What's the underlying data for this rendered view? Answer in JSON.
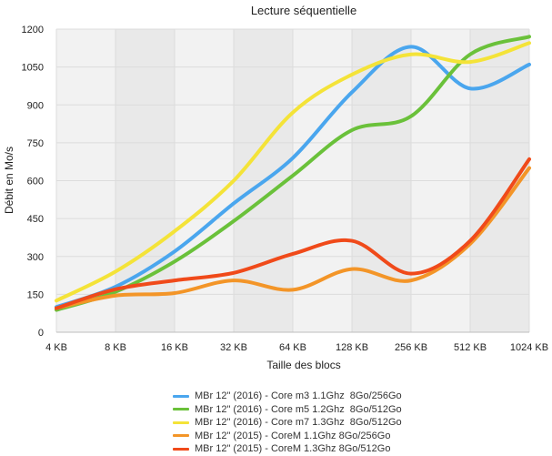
{
  "chart_data": {
    "type": "line",
    "title": "Lecture séquentielle",
    "xlabel": "Taille des blocs",
    "ylabel": "Débit en Mo/s",
    "categories": [
      "4 KB",
      "8 KB",
      "16 KB",
      "32 KB",
      "64 KB",
      "128 KB",
      "256 KB",
      "512 KB",
      "1024 KB"
    ],
    "ylim": [
      0,
      1200
    ],
    "yticks": [
      "0",
      "150",
      "300",
      "450",
      "600",
      "750",
      "900",
      "1050",
      "1200"
    ],
    "grid": true,
    "legend_position": "bottom",
    "series": [
      {
        "name": "MBr 12\" (2016) - Core m3 1.1Ghz  8Go/256Go",
        "color": "#4aa6ee",
        "values": [
          100,
          180,
          320,
          510,
          690,
          950,
          1130,
          965,
          1060
        ]
      },
      {
        "name": "MBr 12\" (2016) - Core m5 1.2Ghz  8Go/512Go",
        "color": "#6ac13a",
        "values": [
          88,
          160,
          280,
          440,
          620,
          800,
          855,
          1100,
          1170
        ]
      },
      {
        "name": "MBr 12\" (2016) - Core m7 1.3Ghz  8Go/512Go",
        "color": "#f4e338",
        "values": [
          125,
          240,
          400,
          600,
          870,
          1020,
          1100,
          1070,
          1145
        ]
      },
      {
        "name": "MBr 12\" (2015) - CoreM 1.1Ghz 8Go/256Go",
        "color": "#f39528",
        "values": [
          95,
          145,
          155,
          205,
          168,
          250,
          205,
          350,
          650
        ]
      },
      {
        "name": "MBr 12\" (2015) - CoreM 1.3Ghz 8Go/512Go",
        "color": "#f04a1a",
        "values": [
          95,
          170,
          205,
          235,
          310,
          362,
          232,
          362,
          685
        ]
      }
    ]
  }
}
